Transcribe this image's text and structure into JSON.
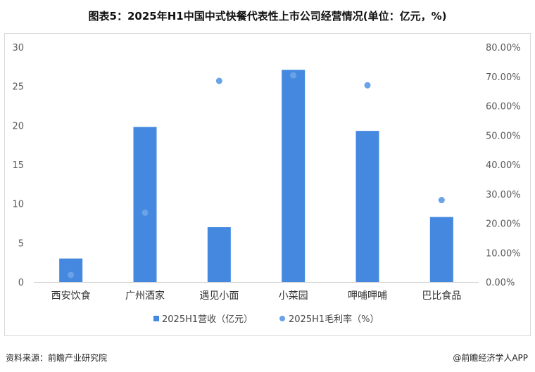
{
  "title": "图表5：2025年H1中国中式快餐代表性上市公司经营情况(单位：亿元，%)",
  "source": "资料来源：前瞻产业研究院",
  "credit": "@前瞻经济学人APP",
  "chart_data": {
    "type": "bar",
    "categories": [
      "西安饮食",
      "广州酒家",
      "遇见小面",
      "小菜园",
      "呷哺呷哺",
      "巴比食品"
    ],
    "series": [
      {
        "name": "2025H1营收（亿元）",
        "type": "bar",
        "axis": "left",
        "values": [
          3.0,
          19.8,
          7.0,
          27.1,
          19.3,
          8.3
        ]
      },
      {
        "name": "2025H1毛利率（%）",
        "type": "scatter",
        "axis": "right",
        "values": [
          2.4,
          23.6,
          68.5,
          70.4,
          67.0,
          27.9
        ]
      }
    ],
    "y_left": {
      "range": [
        0,
        30
      ],
      "ticks": [
        "0",
        "5",
        "10",
        "15",
        "20",
        "25",
        "30"
      ]
    },
    "y_right": {
      "range": [
        0,
        80
      ],
      "ticks": [
        "0.00%",
        "10.00%",
        "20.00%",
        "30.00%",
        "40.00%",
        "50.00%",
        "60.00%",
        "70.00%",
        "80.00%"
      ]
    },
    "legend_position": "bottom",
    "grid": false,
    "colors": {
      "bar": "#4488e0",
      "dot": "#6aa2e8"
    }
  }
}
